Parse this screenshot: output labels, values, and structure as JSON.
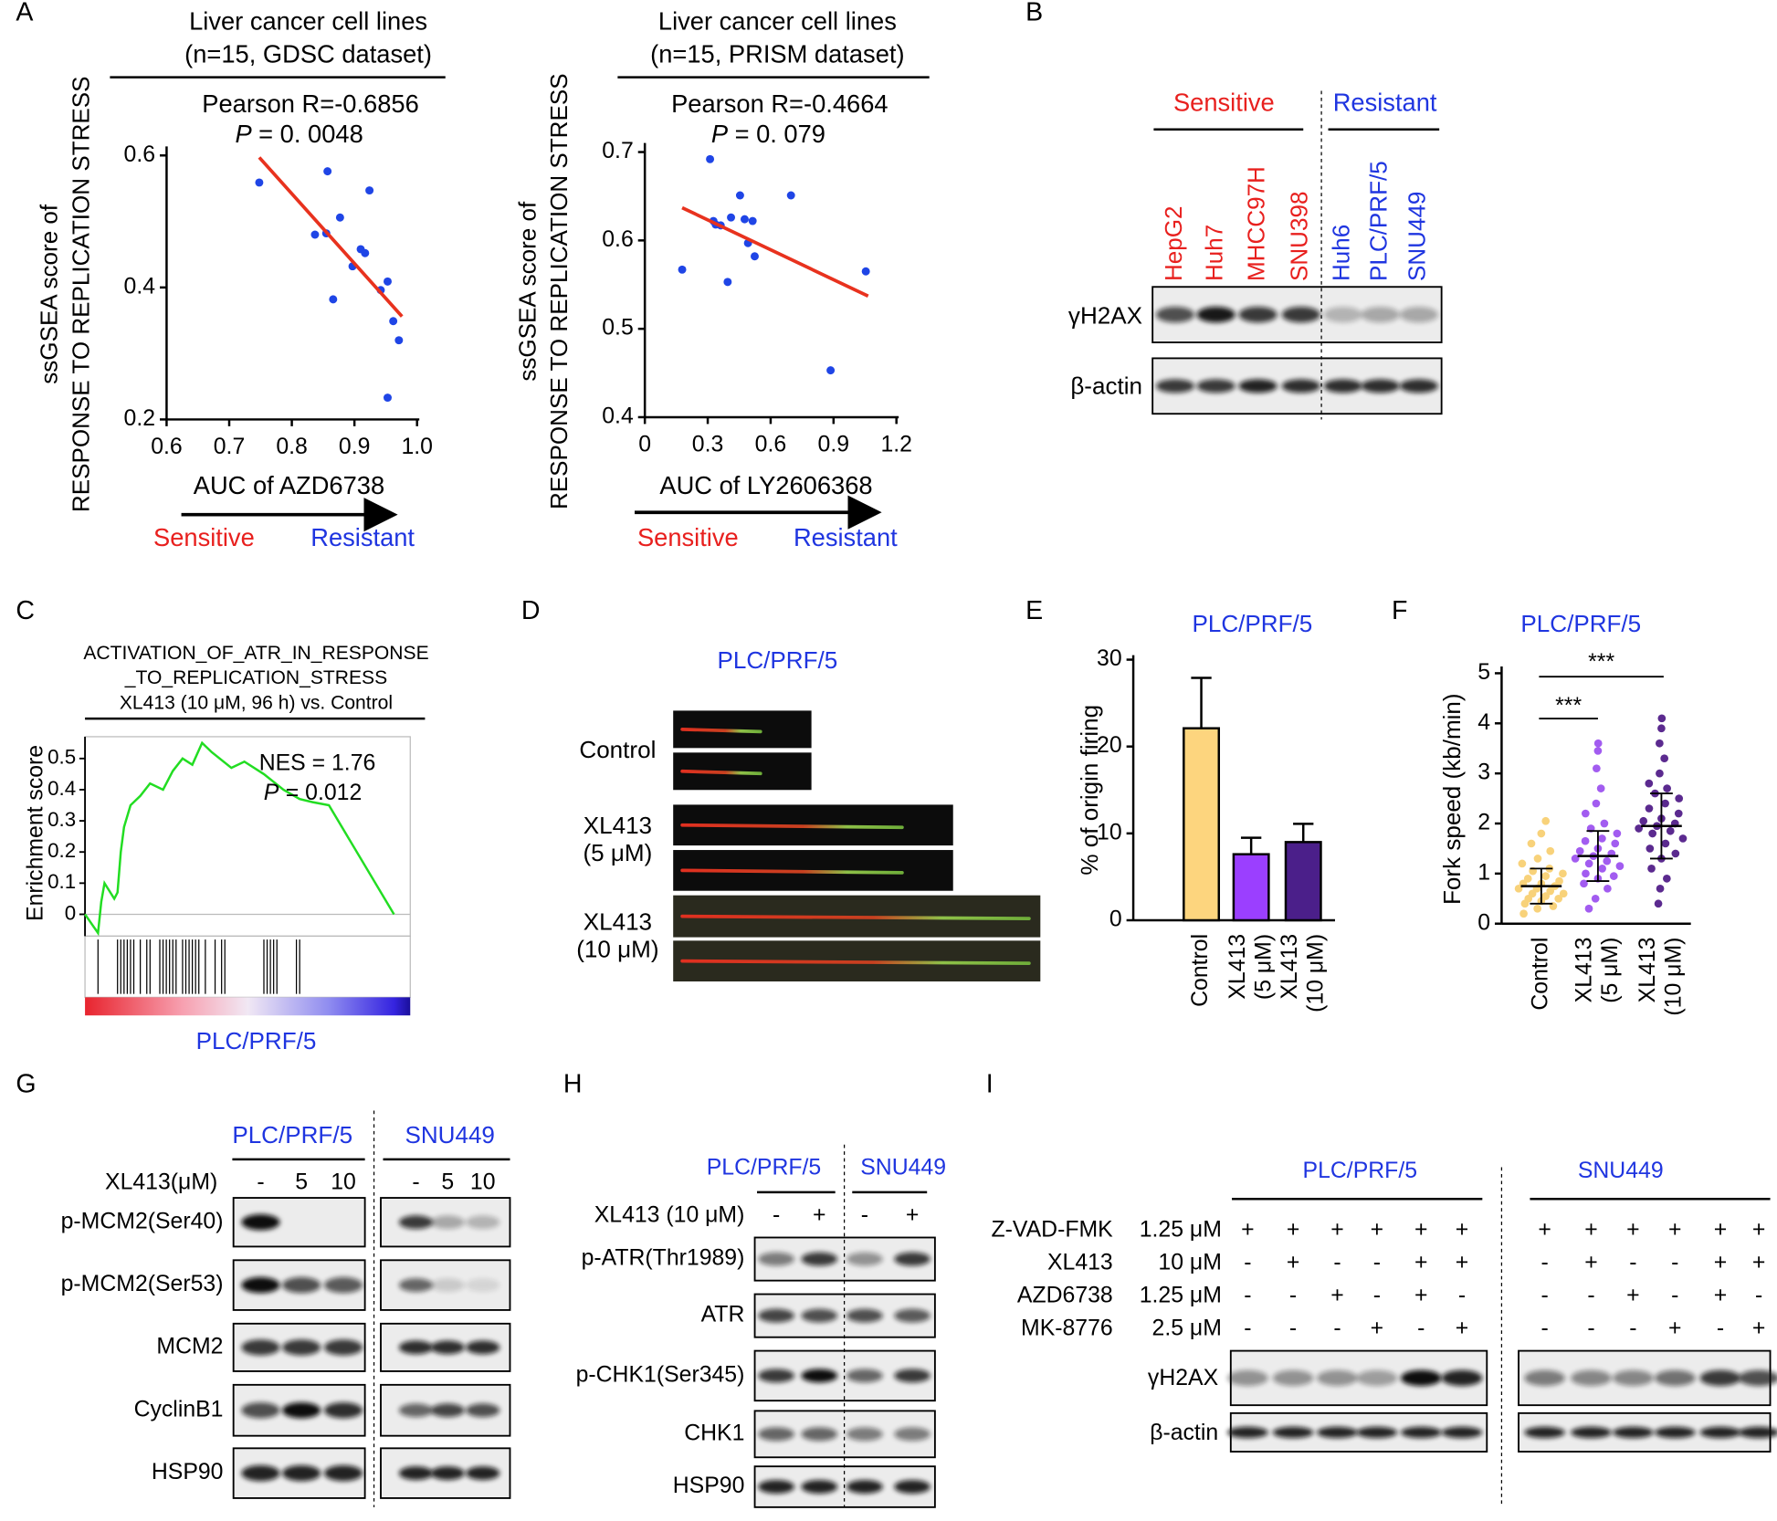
{
  "panel_labels": [
    "A",
    "B",
    "C",
    "D",
    "E",
    "F",
    "G",
    "H",
    "I"
  ],
  "chart_data": [
    {
      "type": "scatter",
      "title": "Liver cancer cell lines",
      "subtitle": "(n=15, GDSC dataset)",
      "annotations": [
        "Pearson R=-0.6856"
      ],
      "p_value": {
        "symbol": "P",
        "text": "= 0. 0048"
      },
      "ylabel": [
        "ssGSEA score of",
        "RESPONSE TO REPLICATION STRESS"
      ],
      "xlabel": "AUC of AZD6738",
      "arrow_labels": [
        "Sensitive",
        "Resistant"
      ],
      "x": [
        0.748,
        0.857,
        0.877,
        0.837,
        0.855,
        0.866,
        0.897,
        0.91,
        0.917,
        0.924,
        0.942,
        0.953,
        0.962,
        0.971,
        0.953
      ],
      "values": [
        0.559,
        0.576,
        0.506,
        0.48,
        0.482,
        0.382,
        0.432,
        0.458,
        0.452,
        0.547,
        0.396,
        0.409,
        0.349,
        0.32,
        0.233
      ],
      "color": "#1f45e6",
      "fit": {
        "x": [
          0.748,
          0.976
        ],
        "values": [
          0.597,
          0.356
        ],
        "color": "#e8321e"
      },
      "xlim": [
        0.6,
        1.0
      ],
      "xticks": [
        0.6,
        0.7,
        0.8,
        0.9,
        {
          "value": 1,
          "label": "1.0"
        }
      ],
      "ylim": [
        0.2,
        0.6
      ],
      "yticks": [
        0.2,
        0.4,
        0.6
      ]
    },
    {
      "type": "scatter",
      "title": "Liver cancer cell lines",
      "subtitle": "(n=15, PRISM dataset)",
      "annotations": [
        "Pearson R=-0.4664"
      ],
      "p_value": {
        "symbol": "P",
        "text": "= 0. 079"
      },
      "ylabel": [
        "ssGSEA score of",
        "RESPONSE TO REPLICATION STRESS"
      ],
      "xlabel": "AUC of LY2606368",
      "arrow_labels": [
        "Sensitive",
        "Resistant"
      ],
      "x": [
        0.178,
        0.311,
        0.327,
        0.338,
        0.362,
        0.395,
        0.411,
        0.454,
        0.476,
        0.492,
        0.514,
        0.524,
        0.697,
        0.886,
        1.054
      ],
      "values": [
        0.567,
        0.692,
        0.622,
        0.618,
        0.617,
        0.553,
        0.626,
        0.651,
        0.624,
        0.597,
        0.622,
        0.582,
        0.651,
        0.453,
        0.565
      ],
      "color": "#1f45e6",
      "fit": {
        "x": [
          0.178,
          1.065
        ],
        "values": [
          0.637,
          0.537
        ],
        "color": "#e8321e"
      },
      "xlim": [
        0,
        1.2
      ],
      "xticks": [
        0,
        0.3,
        0.6,
        0.9,
        1.2
      ],
      "ylim": [
        0.4,
        0.7
      ],
      "yticks": [
        0.4,
        0.5,
        0.6,
        0.7
      ]
    },
    {
      "type": "line",
      "title": [
        "ACTIVATION_OF_ATR_IN_RESPONSE",
        "_TO_REPLICATION_STRESS",
        "XL413 (10 μM, 96 h) vs. Control"
      ],
      "annotations": [
        "NES = 1.76"
      ],
      "p_value": {
        "symbol": "P",
        "text": "= 0.012"
      },
      "ylabel": "Enrichment score",
      "xlabel": "PLC/PRF/5",
      "x": [
        0,
        4,
        5,
        6,
        9,
        10,
        11,
        12,
        14,
        17,
        20,
        24,
        27,
        30,
        33,
        36,
        39,
        45,
        49,
        55,
        61,
        66,
        70,
        75,
        95
      ],
      "values": [
        0,
        -0.06,
        0.04,
        0.1,
        0.05,
        0.07,
        0.2,
        0.28,
        0.35,
        0.38,
        0.42,
        0.4,
        0.46,
        0.5,
        0.48,
        0.55,
        0.52,
        0.47,
        0.49,
        0.45,
        0.4,
        0.37,
        0.36,
        0.35,
        0
      ],
      "hits": [
        4,
        10,
        11,
        12,
        13,
        14,
        15,
        17,
        19,
        20,
        23,
        24,
        25,
        26,
        27,
        28,
        30,
        31,
        32,
        33,
        34,
        35,
        37,
        40,
        42,
        43,
        55,
        56,
        57,
        58,
        59,
        65,
        66
      ],
      "color": "#22dd22",
      "xlim": [
        0,
        100
      ],
      "ylim": [
        -0.07,
        0.57
      ],
      "yticks": [
        0,
        0.1,
        0.2,
        0.3,
        0.4,
        0.5
      ]
    },
    {
      "type": "bar",
      "title": "PLC/PRF/5",
      "ylabel": "% of origin firing",
      "categories": [
        "Control",
        "XL413\n(5 μM)",
        "XL413\n(10 μM)"
      ],
      "values": [
        22.1,
        7.6,
        9.0
      ],
      "errors": [
        5.8,
        1.9,
        2.1
      ],
      "colors": [
        "#fdd57e",
        "#9b3fff",
        "#4b1f8a"
      ],
      "ylim": [
        0,
        30
      ],
      "yticks": [
        0,
        10,
        20,
        30
      ]
    },
    {
      "type": "dotplot",
      "title": "PLC/PRF/5",
      "ylabel": "Fork speed (kb/min)",
      "categories": [
        "Control",
        "XL413\n(5 μM)",
        "XL413\n(10 μM)"
      ],
      "groups": [
        {
          "color": "#f8d27a",
          "values": [
            0.2,
            0.3,
            0.35,
            0.4,
            0.45,
            0.5,
            0.5,
            0.55,
            0.6,
            0.6,
            0.65,
            0.7,
            0.7,
            0.75,
            0.8,
            0.8,
            0.85,
            0.9,
            0.95,
            1.0,
            1.05,
            1.1,
            1.2,
            1.3,
            1.45,
            1.6,
            1.8,
            2.05
          ]
        },
        {
          "color": "#a25cf0",
          "values": [
            0.3,
            0.5,
            0.7,
            0.8,
            0.9,
            0.95,
            1.0,
            1.1,
            1.15,
            1.2,
            1.25,
            1.3,
            1.35,
            1.4,
            1.45,
            1.5,
            1.6,
            1.65,
            1.7,
            1.8,
            1.9,
            2.0,
            2.2,
            2.4,
            2.7,
            3.1,
            3.45,
            3.6
          ]
        },
        {
          "color": "#5b2a8f",
          "values": [
            0.4,
            0.7,
            0.9,
            1.1,
            1.3,
            1.4,
            1.5,
            1.6,
            1.7,
            1.8,
            1.85,
            1.9,
            1.95,
            2.0,
            2.05,
            2.1,
            2.2,
            2.3,
            2.4,
            2.5,
            2.6,
            2.7,
            2.8,
            3.0,
            3.3,
            3.6,
            3.9,
            4.1
          ]
        }
      ],
      "means": [
        0.75,
        1.35,
        1.95
      ],
      "sd": [
        0.35,
        0.5,
        0.65
      ],
      "significance": [
        "***",
        "***"
      ],
      "ylim": [
        0,
        5
      ],
      "yticks": [
        0,
        1,
        2,
        3,
        4,
        5
      ]
    }
  ],
  "panel_B": {
    "groups": [
      "Sensitive",
      "Resistant"
    ],
    "lanes": [
      "HepG2",
      "Huh7",
      "MHCC97H",
      "SNU398",
      "Huh6",
      "PLC/PRF/5",
      "SNU449"
    ],
    "rows": [
      "γH2AX",
      "β-actin"
    ]
  },
  "panel_D": {
    "title": "PLC/PRF/5",
    "rows": [
      "Control",
      "XL413\n(5 μM)",
      "XL413\n(10 μM)"
    ]
  },
  "panel_G": {
    "cells": [
      "PLC/PRF/5",
      "SNU449"
    ],
    "treatment": "XL413(μM)",
    "lanes": [
      "-",
      "5",
      "10"
    ],
    "rows": [
      "p-MCM2(Ser40)",
      "p-MCM2(Ser53)",
      "MCM2",
      "CyclinB1",
      "HSP90"
    ]
  },
  "panel_H": {
    "cells": [
      "PLC/PRF/5",
      "SNU449"
    ],
    "treatment": "XL413 (10 μM)",
    "lanes": [
      "-",
      "+"
    ],
    "rows": [
      "p-ATR(Thr1989)",
      "ATR",
      "p-CHK1(Ser345)",
      "CHK1",
      "HSP90"
    ]
  },
  "panel_I": {
    "cells": [
      "PLC/PRF/5",
      "SNU449"
    ],
    "treatments": [
      {
        "name": "Z-VAD-FMK",
        "dose": "1.25 μM",
        "lanes": [
          "+",
          "+",
          "+",
          "+",
          "+",
          "+"
        ]
      },
      {
        "name": "XL413",
        "dose": "10 μM",
        "lanes": [
          "-",
          "+",
          "-",
          "-",
          "+",
          "+"
        ]
      },
      {
        "name": "AZD6738",
        "dose": "1.25 μM",
        "lanes": [
          "-",
          "-",
          "+",
          "-",
          "+",
          "-"
        ]
      },
      {
        "name": "MK-8776",
        "dose": "2.5 μM",
        "lanes": [
          "-",
          "-",
          "-",
          "+",
          "-",
          "+"
        ]
      }
    ],
    "rows": [
      "γH2AX",
      "β-actin"
    ]
  }
}
